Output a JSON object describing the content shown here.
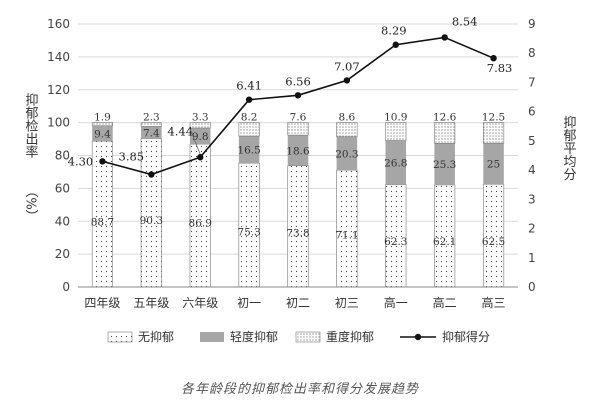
{
  "chart_data": {
    "type": "bar",
    "subtype": "stacked-bar-with-line",
    "caption": "各年龄段的抑郁检出率和得分发展趋势",
    "y_left_title": "抑郁检出率",
    "y_left_unit": "（%）",
    "y_right_title": "抑郁平均分",
    "ylim_left": [
      0,
      160
    ],
    "yticks_left": [
      "0",
      "20",
      "40",
      "60",
      "80",
      "100",
      "120",
      "140",
      "160"
    ],
    "ylim_right": [
      0,
      9
    ],
    "yticks_right": [
      "0",
      "1",
      "2",
      "3",
      "4",
      "5",
      "6",
      "7",
      "8",
      "9"
    ],
    "categories": [
      "四年级",
      "五年级",
      "六年级",
      "初一",
      "初二",
      "初三",
      "高一",
      "高二",
      "高三"
    ],
    "series": [
      {
        "name": "无抑郁",
        "axis": "left",
        "pattern": "dots-sparse",
        "values": [
          88.7,
          90.3,
          86.9,
          75.3,
          73.8,
          71.1,
          62.3,
          62.1,
          62.5
        ],
        "labels": [
          "88.7",
          "90.3",
          "86.9",
          "75.3",
          "73.8",
          "71.1",
          "62.3",
          "62.1",
          "62.5"
        ]
      },
      {
        "name": "轻度抑郁",
        "axis": "left",
        "pattern": "solid-gray",
        "values": [
          9.4,
          7.4,
          9.8,
          16.5,
          18.6,
          20.3,
          26.8,
          25.3,
          25
        ],
        "labels": [
          "9.4",
          "7.4",
          "9.8",
          "16.5",
          "18.6",
          "20.3",
          "26.8",
          "25.3",
          "25"
        ]
      },
      {
        "name": "重度抑郁",
        "axis": "left",
        "pattern": "dots-dense",
        "values": [
          1.9,
          2.3,
          3.3,
          8.2,
          7.6,
          8.6,
          10.9,
          12.6,
          12.5
        ],
        "labels": [
          "1.9",
          "2.3",
          "3.3",
          "8.2",
          "7.6",
          "8.6",
          "10.9",
          "12.6",
          "12.5"
        ]
      },
      {
        "name": "抑郁得分",
        "axis": "right",
        "type": "line",
        "values": [
          4.3,
          3.85,
          4.44,
          6.41,
          6.56,
          7.07,
          8.29,
          8.54,
          7.83
        ],
        "labels": [
          "4.30",
          "3.85",
          "4.44",
          "6.41",
          "6.56",
          "7.07",
          "8.29",
          "8.54",
          "7.83"
        ]
      }
    ],
    "legend": {
      "position": "bottom"
    },
    "grid": true
  },
  "colors": {
    "grid": "#d9d9d9",
    "axis": "#888888",
    "light_gray": "#a6a6a6",
    "line": "#111111",
    "bar_border": "#777777"
  }
}
